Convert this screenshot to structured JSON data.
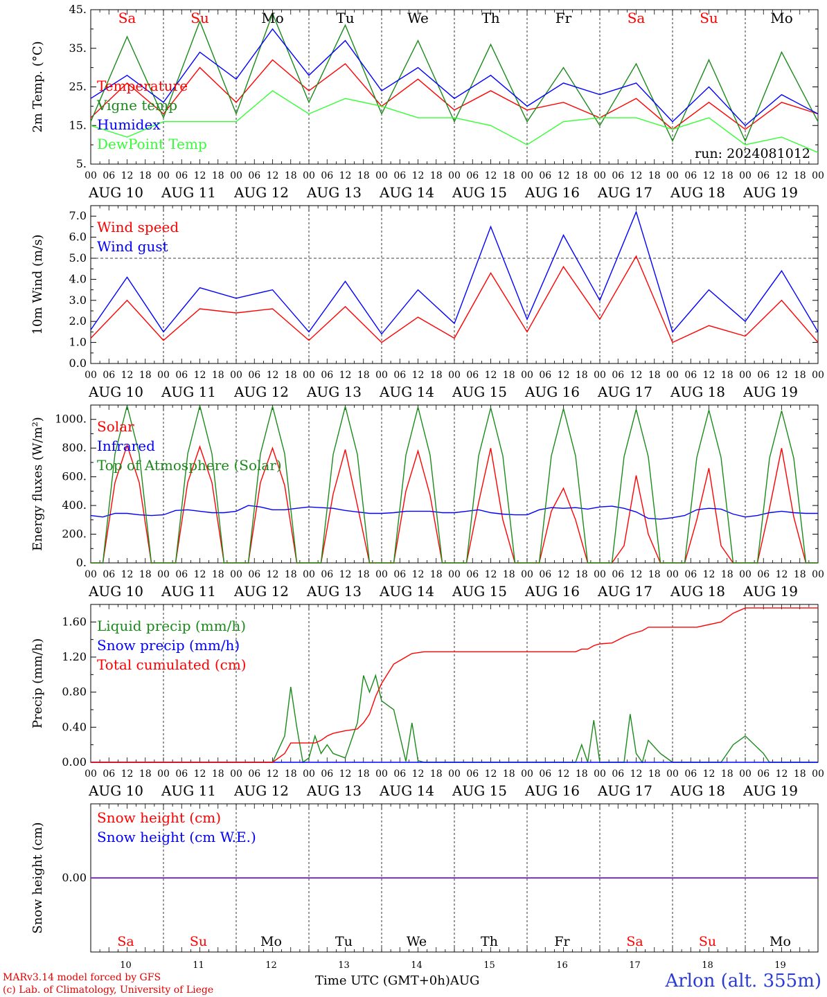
{
  "chart_data": [
    {
      "type": "line",
      "ylabel": "2m Temp. (°C)",
      "ylim": [
        5,
        45
      ],
      "yticks": [
        "5.",
        "15.",
        "25.",
        "35.",
        "45."
      ],
      "day_names": [
        "Sa",
        "Su",
        "Mo",
        "Tu",
        "We",
        "Th",
        "Fr",
        "Sa",
        "Su",
        "Mo"
      ],
      "day_name_colors": [
        "#ff0000",
        "#ff0000",
        "#000000",
        "#000000",
        "#000000",
        "#000000",
        "#000000",
        "#ff0000",
        "#ff0000",
        "#000000"
      ],
      "run_label": "run: 2024081012",
      "x": [
        0,
        12,
        24,
        36,
        48,
        60,
        72,
        84,
        96,
        108,
        120,
        132,
        144,
        156,
        168,
        180,
        192,
        204,
        216,
        228,
        240
      ],
      "series": [
        {
          "name": "Temperature",
          "color": "#ff0000",
          "values": [
            17,
            26,
            18,
            30,
            21,
            32,
            24,
            31,
            20,
            27,
            19,
            24,
            19,
            21,
            17,
            22,
            14,
            21,
            14,
            21,
            18
          ]
        },
        {
          "name": "Vigne temp",
          "color": "#1a8a1a",
          "values": [
            16,
            38,
            17,
            42,
            18,
            44,
            21,
            41,
            18,
            37,
            16,
            36,
            16,
            30,
            15,
            31,
            11,
            32,
            11,
            34,
            16
          ]
        },
        {
          "name": "Humidex",
          "color": "#0000ff",
          "values": [
            22,
            28,
            21,
            34,
            27,
            40,
            28,
            37,
            24,
            30,
            22,
            28,
            20,
            26,
            23,
            26,
            16,
            25,
            15,
            23,
            18
          ]
        },
        {
          "name": "DewPoint Temp",
          "color": "#33ff33",
          "values": [
            15,
            12,
            16,
            16,
            16,
            24,
            18,
            22,
            20,
            17,
            17,
            15,
            10,
            16,
            17,
            17,
            14,
            17,
            10,
            12,
            8
          ]
        }
      ]
    },
    {
      "type": "line",
      "ylabel": "10m Wind (m/s)",
      "ylim": [
        0,
        7.5
      ],
      "yticks": [
        "0.0",
        "1.0",
        "2.0",
        "3.0",
        "4.0",
        "5.0",
        "6.0",
        "7.0"
      ],
      "threshold": 5.0,
      "x": [
        0,
        12,
        24,
        36,
        48,
        60,
        72,
        84,
        96,
        108,
        120,
        132,
        144,
        156,
        168,
        180,
        192,
        204,
        216,
        228,
        240
      ],
      "series": [
        {
          "name": "Wind speed",
          "color": "#ff0000",
          "values": [
            1.2,
            3.0,
            1.1,
            2.6,
            2.4,
            2.6,
            1.1,
            2.7,
            1.0,
            2.2,
            1.2,
            4.3,
            1.5,
            4.6,
            2.1,
            5.1,
            1.0,
            1.8,
            1.3,
            3.0,
            1.0
          ]
        },
        {
          "name": "Wind gust",
          "color": "#0000ff",
          "values": [
            1.6,
            4.1,
            1.5,
            3.6,
            3.1,
            3.5,
            1.5,
            3.9,
            1.4,
            3.5,
            1.9,
            6.5,
            2.1,
            6.1,
            3.0,
            7.2,
            1.5,
            3.5,
            2.0,
            4.4,
            1.5
          ]
        }
      ]
    },
    {
      "type": "line",
      "ylabel": "Energy fluxes (W/m²)",
      "ylim": [
        0,
        1100
      ],
      "yticks": [
        "0.",
        "200.",
        "400.",
        "600.",
        "800.",
        "1000."
      ],
      "x": [
        0,
        4,
        8,
        12,
        16,
        20,
        24,
        28,
        32,
        36,
        40,
        44,
        48,
        52,
        56,
        60,
        64,
        68,
        72,
        76,
        80,
        84,
        88,
        92,
        96,
        100,
        104,
        108,
        112,
        116,
        120,
        124,
        128,
        132,
        136,
        140,
        144,
        148,
        152,
        156,
        160,
        164,
        168,
        172,
        176,
        180,
        184,
        188,
        192,
        196,
        200,
        204,
        208,
        212,
        216,
        220,
        224,
        228,
        232,
        236,
        240
      ],
      "series": [
        {
          "name": "Solar",
          "color": "#ff0000",
          "values": [
            0,
            0,
            560,
            820,
            560,
            0,
            0,
            0,
            560,
            810,
            560,
            0,
            0,
            0,
            560,
            800,
            540,
            0,
            0,
            0,
            480,
            790,
            400,
            0,
            0,
            0,
            500,
            780,
            470,
            0,
            0,
            0,
            420,
            800,
            300,
            0,
            0,
            0,
            360,
            520,
            300,
            0,
            0,
            0,
            120,
            610,
            200,
            0,
            0,
            0,
            300,
            660,
            120,
            0,
            0,
            0,
            380,
            800,
            320,
            0,
            0
          ]
        },
        {
          "name": "Infrared",
          "color": "#0000ff",
          "values": [
            330,
            320,
            345,
            345,
            335,
            330,
            335,
            365,
            370,
            360,
            350,
            350,
            360,
            400,
            390,
            370,
            370,
            380,
            390,
            385,
            380,
            365,
            355,
            345,
            345,
            350,
            360,
            360,
            360,
            350,
            350,
            360,
            370,
            350,
            340,
            335,
            335,
            370,
            385,
            380,
            385,
            375,
            390,
            395,
            380,
            355,
            310,
            305,
            315,
            330,
            370,
            380,
            375,
            340,
            320,
            330,
            350,
            360,
            350,
            345,
            345
          ]
        },
        {
          "name": "Top of Atmosphere (Solar)",
          "color": "#1a8a1a",
          "values": [
            0,
            0,
            760,
            1095,
            760,
            0,
            0,
            0,
            760,
            1095,
            760,
            0,
            0,
            0,
            760,
            1090,
            760,
            0,
            0,
            0,
            755,
            1090,
            755,
            0,
            0,
            0,
            750,
            1085,
            750,
            0,
            0,
            0,
            745,
            1080,
            745,
            0,
            0,
            0,
            745,
            1075,
            745,
            0,
            0,
            0,
            740,
            1070,
            740,
            0,
            0,
            0,
            735,
            1065,
            735,
            0,
            0,
            0,
            730,
            1060,
            730,
            0,
            0
          ]
        }
      ]
    },
    {
      "type": "line",
      "ylabel": "Precip (mm/h)",
      "ylim": [
        0,
        1.8
      ],
      "yticks": [
        "0.00",
        "0.40",
        "0.80",
        "1.20",
        "1.60"
      ],
      "x": [
        0,
        48,
        60,
        64,
        66,
        68,
        70,
        72,
        74,
        76,
        78,
        80,
        84,
        88,
        90,
        92,
        94,
        96,
        100,
        104,
        106,
        108,
        110,
        112,
        116,
        120,
        144,
        160,
        162,
        164,
        166,
        168,
        172,
        176,
        178,
        180,
        182,
        184,
        188,
        192,
        200,
        208,
        212,
        216,
        222,
        224,
        240
      ],
      "series": [
        {
          "name": "Liquid precip (mm/h)",
          "color": "#1a8a1a",
          "values": [
            0,
            0,
            0,
            0.3,
            0.86,
            0.4,
            0,
            0.05,
            0.3,
            0.1,
            0.2,
            0.1,
            0.05,
            0.45,
            0.99,
            0.8,
            0.99,
            0.7,
            0.6,
            0.01,
            0.45,
            0.02,
            0,
            0,
            0,
            0,
            0,
            0,
            0.2,
            0,
            0.48,
            0,
            0,
            0,
            0.55,
            0.1,
            0,
            0.25,
            0.1,
            0,
            0,
            0,
            0.2,
            0.3,
            0.1,
            0,
            0
          ]
        },
        {
          "name": "Snow precip (mm/h)",
          "color": "#0000ff",
          "values": [
            0,
            0,
            0,
            0,
            0,
            0,
            0,
            0,
            0,
            0,
            0,
            0,
            0,
            0,
            0,
            0,
            0,
            0,
            0,
            0,
            0,
            0,
            0,
            0,
            0,
            0,
            0,
            0,
            0,
            0,
            0,
            0,
            0,
            0,
            0,
            0,
            0,
            0,
            0,
            0,
            0,
            0,
            0,
            0,
            0,
            0,
            0
          ]
        },
        {
          "name": "Total cumulated (cm)",
          "color": "#ff0000",
          "values": [
            0,
            0,
            0,
            0.1,
            0.22,
            0.22,
            0.22,
            0.22,
            0.22,
            0.25,
            0.3,
            0.33,
            0.36,
            0.38,
            0.45,
            0.55,
            0.75,
            0.9,
            1.12,
            1.2,
            1.24,
            1.25,
            1.26,
            1.26,
            1.26,
            1.26,
            1.26,
            1.26,
            1.29,
            1.29,
            1.33,
            1.35,
            1.36,
            1.43,
            1.46,
            1.48,
            1.5,
            1.54,
            1.54,
            1.54,
            1.54,
            1.6,
            1.7,
            1.76,
            1.76,
            1.76,
            1.76
          ]
        }
      ]
    },
    {
      "type": "line",
      "ylabel": "Snow height (cm)",
      "ylim": [
        -1,
        1
      ],
      "yticks": [
        "0.00"
      ],
      "x": [
        0,
        240
      ],
      "series": [
        {
          "name": "Snow height (cm)",
          "color": "#ff0000",
          "values": [
            0,
            0
          ]
        },
        {
          "name": "Snow height (cm W.E.)",
          "color": "#0000ff",
          "values": [
            0,
            0
          ]
        }
      ],
      "day_names": [
        "Sa",
        "Su",
        "Mo",
        "Tu",
        "We",
        "Th",
        "Fr",
        "Sa",
        "Su",
        "Mo"
      ],
      "day_name_colors": [
        "#ff0000",
        "#ff0000",
        "#000000",
        "#000000",
        "#000000",
        "#000000",
        "#000000",
        "#ff0000",
        "#ff0000",
        "#000000"
      ],
      "day_numbers": [
        "10",
        "11",
        "12",
        "13",
        "14",
        "15",
        "16",
        "17",
        "18",
        "19"
      ]
    }
  ],
  "x_ticks": [
    "00",
    "06",
    "12",
    "18"
  ],
  "x_end_tick": "00",
  "date_labels": [
    "AUG 10",
    "AUG 11",
    "AUG 12",
    "AUG 13",
    "AUG 14",
    "AUG 15",
    "AUG 16",
    "AUG 17",
    "AUG 18",
    "AUG 19"
  ],
  "footer": {
    "credit_line1": "MARv3.14 model forced by GFS",
    "credit_line2": "(c) Lab. of Climatology, University of Liege",
    "x_title": "Time UTC (GMT+0h)AUG",
    "station": "Arlon (alt. 355m)"
  }
}
